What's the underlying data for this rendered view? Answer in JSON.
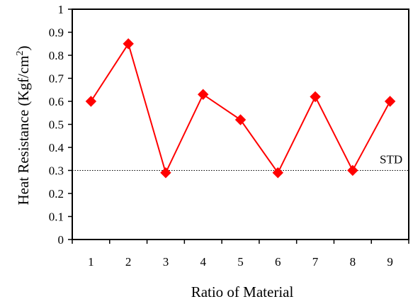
{
  "chart_data": {
    "type": "line",
    "title": "",
    "xlabel": "Ratio of Material",
    "ylabel_main": "Heat Resistance (Kgf/cm",
    "ylabel_sup": "2",
    "ylabel_close": ")",
    "categories": [
      "1",
      "2",
      "3",
      "4",
      "5",
      "6",
      "7",
      "8",
      "9"
    ],
    "series": [
      {
        "values": [
          0.6,
          0.85,
          0.29,
          0.63,
          0.52,
          0.29,
          0.62,
          0.3,
          0.6
        ],
        "color": "#ff0000",
        "marker": "diamond"
      }
    ],
    "yticks": [
      "0",
      "0.1",
      "0.2",
      "0.3",
      "0.4",
      "0.5",
      "0.6",
      "0.7",
      "0.8",
      "0.9",
      "1"
    ],
    "ylim": [
      0,
      1
    ],
    "xlim": [
      0.5,
      9.5
    ],
    "reference_line": {
      "value": 0.3,
      "label": "STD",
      "style": "dotted"
    },
    "grid": false,
    "legend": "none"
  }
}
